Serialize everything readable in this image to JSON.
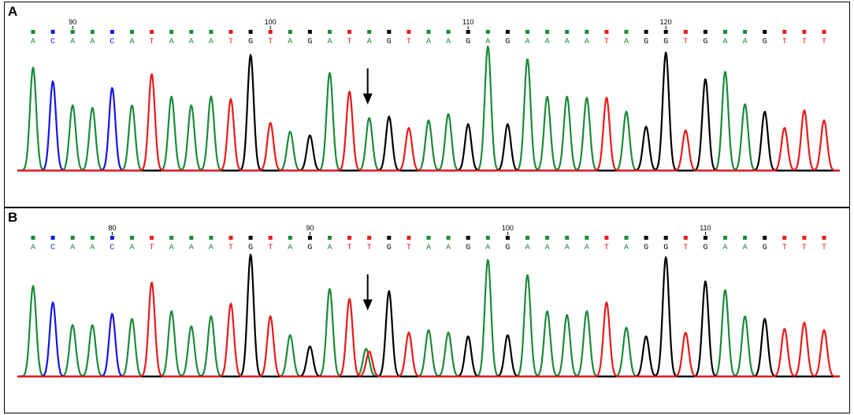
{
  "colors": {
    "A": "#1a8a3a",
    "C": "#1515e6",
    "G": "#000000",
    "T": "#e81a1a",
    "baseline": "#1515e6"
  },
  "chart_data": [
    {
      "type": "chromatogram",
      "panel_label": "A",
      "sequence": [
        "A",
        "C",
        "A",
        "A",
        "C",
        "A",
        "T",
        "A",
        "A",
        "A",
        "T",
        "G",
        "T",
        "A",
        "G",
        "A",
        "T",
        "A",
        "G",
        "T",
        "A",
        "A",
        "G",
        "A",
        "G",
        "A",
        "A",
        "A",
        "A",
        "T",
        "A",
        "G",
        "G",
        "T",
        "G",
        "A",
        "A",
        "G",
        "T",
        "T",
        "T"
      ],
      "position_labels": [
        {
          "label": "90",
          "base_index": 2
        },
        {
          "label": "100",
          "base_index": 12
        },
        {
          "label": "110",
          "base_index": 22
        },
        {
          "label": "120",
          "base_index": 32
        }
      ],
      "peak_heights": [
        0.82,
        0.71,
        0.52,
        0.5,
        0.66,
        0.52,
        0.77,
        0.59,
        0.52,
        0.59,
        0.57,
        0.92,
        0.38,
        0.31,
        0.28,
        0.78,
        0.63,
        0.42,
        0.43,
        0.34,
        0.4,
        0.45,
        0.37,
        0.99,
        0.37,
        0.89,
        0.59,
        0.59,
        0.58,
        0.58,
        0.47,
        0.35,
        0.94,
        0.32,
        0.73,
        0.79,
        0.53,
        0.47,
        0.34,
        0.48,
        0.4
      ],
      "mutation_arrow_base_index": 17
    },
    {
      "type": "chromatogram",
      "panel_label": "B",
      "sequence": [
        "A",
        "C",
        "A",
        "A",
        "C",
        "A",
        "T",
        "A",
        "A",
        "A",
        "T",
        "G",
        "T",
        "A",
        "G",
        "A",
        "T",
        "T",
        "G",
        "T",
        "A",
        "A",
        "G",
        "A",
        "G",
        "A",
        "A",
        "A",
        "A",
        "T",
        "A",
        "G",
        "G",
        "T",
        "G",
        "A",
        "A",
        "G",
        "T",
        "T",
        "T"
      ],
      "position_labels": [
        {
          "label": "80",
          "base_index": 4
        },
        {
          "label": "90",
          "base_index": 14
        },
        {
          "label": "100",
          "base_index": 24
        },
        {
          "label": "110",
          "base_index": 34
        }
      ],
      "peak_heights": [
        0.72,
        0.59,
        0.41,
        0.41,
        0.5,
        0.46,
        0.75,
        0.52,
        0.4,
        0.48,
        0.58,
        0.97,
        0.48,
        0.33,
        0.24,
        0.7,
        0.62,
        0.2,
        0.68,
        0.35,
        0.37,
        0.35,
        0.32,
        0.93,
        0.33,
        0.81,
        0.52,
        0.49,
        0.52,
        0.59,
        0.39,
        0.32,
        0.95,
        0.35,
        0.76,
        0.69,
        0.48,
        0.46,
        0.38,
        0.43,
        0.37
      ],
      "secondary_peak": {
        "base_index": 17,
        "base": "A",
        "height": 0.22
      },
      "mutation_arrow_base_index": 17
    }
  ]
}
